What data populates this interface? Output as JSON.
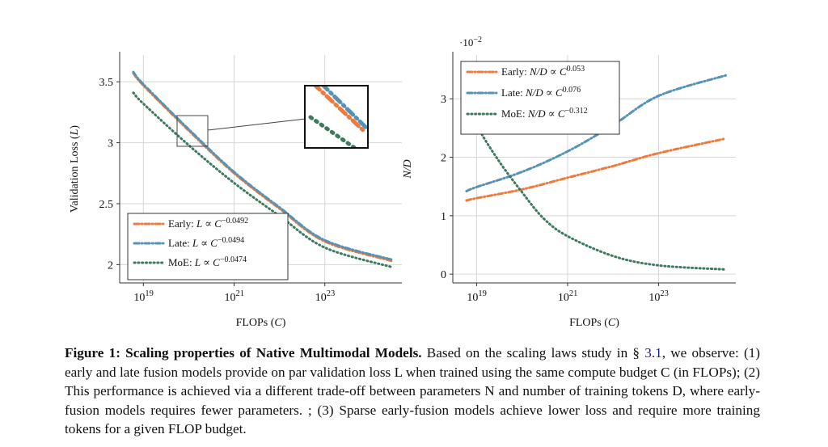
{
  "charts": {
    "left": {
      "chart_data": {
        "type": "line",
        "xlabel": "FLOPs (C)",
        "ylabel": "Validation Loss (L)",
        "xscale": "log",
        "xlim": [
          3e+18,
          5e+24
        ],
        "ylim": [
          1.85,
          3.72
        ],
        "xticks": [
          1e+19,
          1e+21,
          1e+23
        ],
        "xtick_labels": [
          "10^19",
          "10^21",
          "10^23"
        ],
        "yticks": [
          2,
          2.5,
          3,
          3.5
        ],
        "ytick_labels": [
          "2",
          "2.5",
          "3",
          "3.5"
        ],
        "grid": true,
        "legend_position": "bottom-left",
        "series": [
          {
            "name": "Early",
            "legend_prefix": "Early: ",
            "legend_math": "L ∝ C",
            "exponent": "−0.0492",
            "color": "#ee7b3c",
            "dash": "dashdot",
            "x": [
              6e+18,
              1e+19,
              1e+20,
              1e+21,
              1e+22,
              1e+23,
              3e+24
            ],
            "y": [
              3.57,
              3.47,
              3.1,
              2.75,
              2.46,
              2.19,
              2.03
            ]
          },
          {
            "name": "Late",
            "legend_prefix": "Late: ",
            "legend_math": "L ∝ C",
            "exponent": "−0.0494",
            "color": "#5592b6",
            "dash": "dashdot",
            "x": [
              6e+18,
              1e+19,
              1e+20,
              1e+21,
              1e+22,
              1e+23,
              3e+24
            ],
            "y": [
              3.58,
              3.48,
              3.11,
              2.76,
              2.47,
              2.2,
              2.04
            ]
          },
          {
            "name": "MoE",
            "legend_prefix": "MoE: ",
            "legend_math": "L ∝ C",
            "exponent": "−0.0474",
            "color": "#3d7a5e",
            "dash": "dotted",
            "x": [
              6e+18,
              1e+19,
              1e+20,
              1e+21,
              1e+22,
              1e+23,
              3e+24
            ],
            "y": [
              3.41,
              3.32,
              2.98,
              2.67,
              2.4,
              2.14,
              1.98
            ]
          }
        ],
        "zoom_inset": true
      }
    },
    "right": {
      "chart_data": {
        "type": "line",
        "xlabel": "FLOPs (C)",
        "ylabel": "N/D",
        "yscale_label": "·10^−2",
        "xscale": "log",
        "xlim": [
          3e+18,
          5e+24
        ],
        "ylim": [
          -0.15,
          3.75
        ],
        "xticks": [
          1e+19,
          1e+21,
          1e+23
        ],
        "xtick_labels": [
          "10^19",
          "10^21",
          "10^23"
        ],
        "yticks": [
          0,
          1,
          2,
          3
        ],
        "ytick_labels": [
          "0",
          "1",
          "2",
          "3"
        ],
        "grid": true,
        "legend_position": "top-left",
        "series": [
          {
            "name": "Early",
            "legend_prefix": "Early: ",
            "legend_math": "N/D ∝ C",
            "exponent": "0.053",
            "color": "#ee7b3c",
            "dash": "dashdot",
            "x": [
              6e+18,
              1e+19,
              1e+20,
              1e+21,
              1e+22,
              1e+23,
              3e+24
            ],
            "y": [
              1.26,
              1.3,
              1.45,
              1.65,
              1.85,
              2.07,
              2.32
            ]
          },
          {
            "name": "Late",
            "legend_prefix": "Late: ",
            "legend_math": "N/D ∝ C",
            "exponent": "0.076",
            "color": "#5592b6",
            "dash": "dashdot",
            "x": [
              6e+18,
              1e+19,
              1e+20,
              1e+21,
              1e+22,
              1e+23,
              3e+24
            ],
            "y": [
              1.42,
              1.49,
              1.75,
              2.1,
              2.55,
              3.05,
              3.4
            ]
          },
          {
            "name": "MoE",
            "legend_prefix": "MoE: ",
            "legend_math": "N/D ∝ C",
            "exponent": "−0.312",
            "color": "#3d7a5e",
            "dash": "dotted",
            "x": [
              6e+18,
              1e+19,
              3e+19,
              1e+20,
              3e+20,
              1e+21,
              1e+22,
              1e+23,
              3e+24
            ],
            "y": [
              3.0,
              2.55,
              1.95,
              1.4,
              0.95,
              0.65,
              0.31,
              0.15,
              0.08
            ]
          }
        ]
      }
    }
  },
  "caption": {
    "label": "Figure 1: Scaling properties of Native Multimodal Models.",
    "text_1": " Based on the scaling laws study in § ",
    "ref": "3.1",
    "text_2": ", we observe: (1) early and late fusion models provide on par validation loss L when trained using the same compute budget C (in FLOPs); (2) This performance is achieved via a different trade-off between parameters N and number of training tokens D, where early-fusion models requires fewer parameters. ; (3) Sparse early-fusion models achieve lower loss and require more training tokens for a given FLOP budget."
  }
}
